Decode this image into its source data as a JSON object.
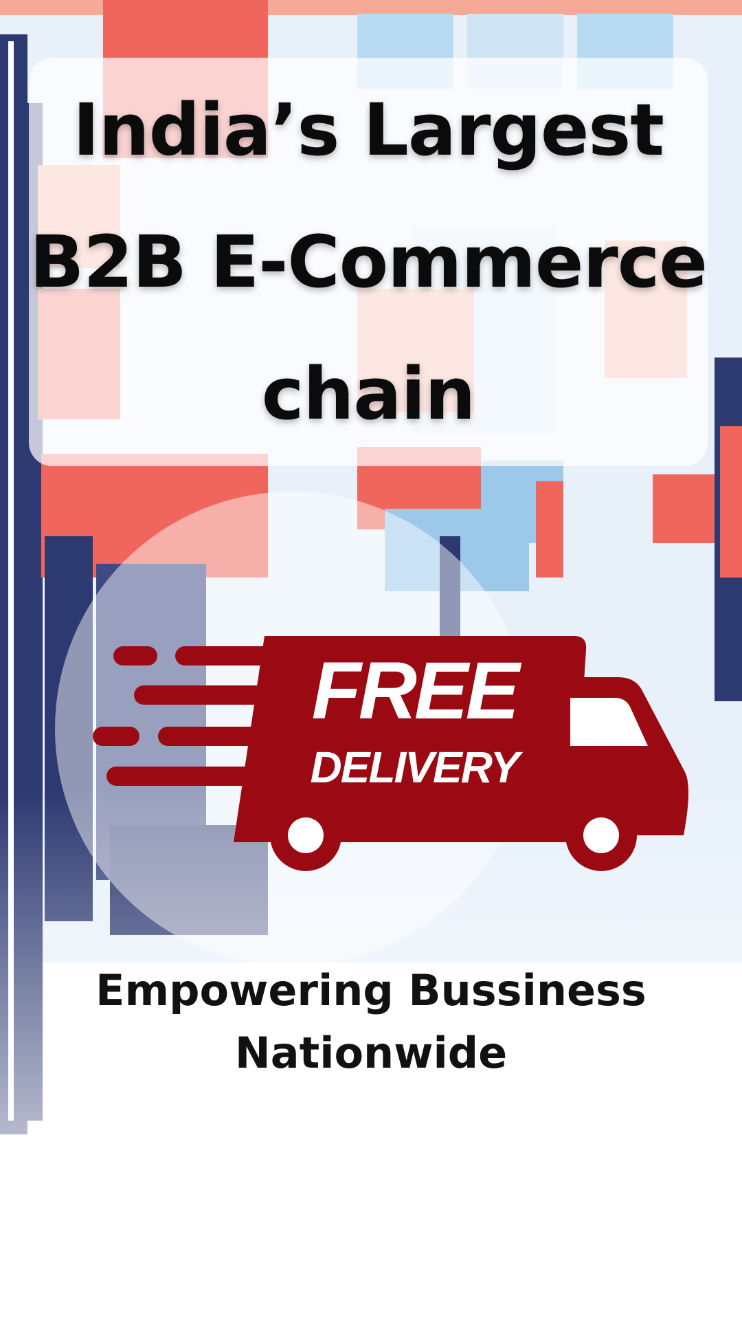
{
  "headline": {
    "line1": "India’s Largest",
    "line2": "B2B E-Commerce",
    "line3": "chain"
  },
  "badge": {
    "word1": "FREE",
    "word2": "DELIVERY",
    "icon": "delivery-truck-icon"
  },
  "tagline": {
    "line1": "Empowering Bussiness",
    "line2": "Nationwide"
  },
  "colors": {
    "brand_red": "#9b0a12",
    "store_red": "#f0665d",
    "store_blue": "#9cc8ea",
    "store_navy": "#2d3a72"
  }
}
